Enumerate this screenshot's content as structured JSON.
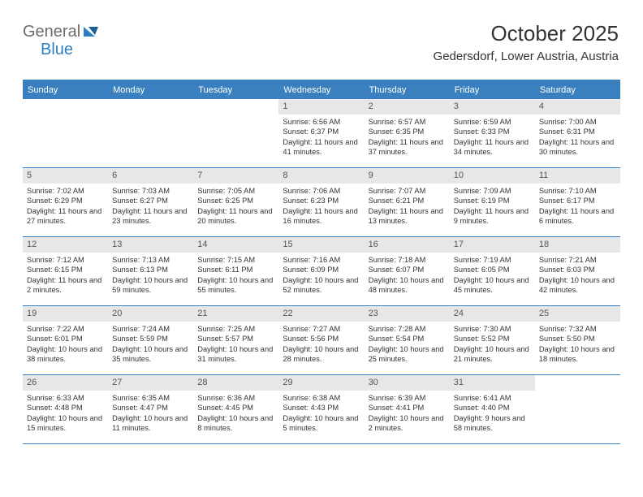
{
  "logo": {
    "general": "General",
    "blue": "Blue"
  },
  "header": {
    "month_title": "October 2025",
    "location": "Gedersdorf, Lower Austria, Austria"
  },
  "colors": {
    "brand_blue": "#3a80bf",
    "logo_blue": "#2d7fc1",
    "logo_gray": "#6b6b6b",
    "daynum_bg": "#e7e7e7",
    "text": "#333333",
    "page_bg": "#ffffff"
  },
  "weekdays": [
    "Sunday",
    "Monday",
    "Tuesday",
    "Wednesday",
    "Thursday",
    "Friday",
    "Saturday"
  ],
  "weeks": [
    [
      {
        "num": "",
        "sunrise": "",
        "sunset": "",
        "daylight": "",
        "empty": true
      },
      {
        "num": "",
        "sunrise": "",
        "sunset": "",
        "daylight": "",
        "empty": true
      },
      {
        "num": "",
        "sunrise": "",
        "sunset": "",
        "daylight": "",
        "empty": true
      },
      {
        "num": "1",
        "sunrise": "Sunrise: 6:56 AM",
        "sunset": "Sunset: 6:37 PM",
        "daylight": "Daylight: 11 hours and 41 minutes."
      },
      {
        "num": "2",
        "sunrise": "Sunrise: 6:57 AM",
        "sunset": "Sunset: 6:35 PM",
        "daylight": "Daylight: 11 hours and 37 minutes."
      },
      {
        "num": "3",
        "sunrise": "Sunrise: 6:59 AM",
        "sunset": "Sunset: 6:33 PM",
        "daylight": "Daylight: 11 hours and 34 minutes."
      },
      {
        "num": "4",
        "sunrise": "Sunrise: 7:00 AM",
        "sunset": "Sunset: 6:31 PM",
        "daylight": "Daylight: 11 hours and 30 minutes."
      }
    ],
    [
      {
        "num": "5",
        "sunrise": "Sunrise: 7:02 AM",
        "sunset": "Sunset: 6:29 PM",
        "daylight": "Daylight: 11 hours and 27 minutes."
      },
      {
        "num": "6",
        "sunrise": "Sunrise: 7:03 AM",
        "sunset": "Sunset: 6:27 PM",
        "daylight": "Daylight: 11 hours and 23 minutes."
      },
      {
        "num": "7",
        "sunrise": "Sunrise: 7:05 AM",
        "sunset": "Sunset: 6:25 PM",
        "daylight": "Daylight: 11 hours and 20 minutes."
      },
      {
        "num": "8",
        "sunrise": "Sunrise: 7:06 AM",
        "sunset": "Sunset: 6:23 PM",
        "daylight": "Daylight: 11 hours and 16 minutes."
      },
      {
        "num": "9",
        "sunrise": "Sunrise: 7:07 AM",
        "sunset": "Sunset: 6:21 PM",
        "daylight": "Daylight: 11 hours and 13 minutes."
      },
      {
        "num": "10",
        "sunrise": "Sunrise: 7:09 AM",
        "sunset": "Sunset: 6:19 PM",
        "daylight": "Daylight: 11 hours and 9 minutes."
      },
      {
        "num": "11",
        "sunrise": "Sunrise: 7:10 AM",
        "sunset": "Sunset: 6:17 PM",
        "daylight": "Daylight: 11 hours and 6 minutes."
      }
    ],
    [
      {
        "num": "12",
        "sunrise": "Sunrise: 7:12 AM",
        "sunset": "Sunset: 6:15 PM",
        "daylight": "Daylight: 11 hours and 2 minutes."
      },
      {
        "num": "13",
        "sunrise": "Sunrise: 7:13 AM",
        "sunset": "Sunset: 6:13 PM",
        "daylight": "Daylight: 10 hours and 59 minutes."
      },
      {
        "num": "14",
        "sunrise": "Sunrise: 7:15 AM",
        "sunset": "Sunset: 6:11 PM",
        "daylight": "Daylight: 10 hours and 55 minutes."
      },
      {
        "num": "15",
        "sunrise": "Sunrise: 7:16 AM",
        "sunset": "Sunset: 6:09 PM",
        "daylight": "Daylight: 10 hours and 52 minutes."
      },
      {
        "num": "16",
        "sunrise": "Sunrise: 7:18 AM",
        "sunset": "Sunset: 6:07 PM",
        "daylight": "Daylight: 10 hours and 48 minutes."
      },
      {
        "num": "17",
        "sunrise": "Sunrise: 7:19 AM",
        "sunset": "Sunset: 6:05 PM",
        "daylight": "Daylight: 10 hours and 45 minutes."
      },
      {
        "num": "18",
        "sunrise": "Sunrise: 7:21 AM",
        "sunset": "Sunset: 6:03 PM",
        "daylight": "Daylight: 10 hours and 42 minutes."
      }
    ],
    [
      {
        "num": "19",
        "sunrise": "Sunrise: 7:22 AM",
        "sunset": "Sunset: 6:01 PM",
        "daylight": "Daylight: 10 hours and 38 minutes."
      },
      {
        "num": "20",
        "sunrise": "Sunrise: 7:24 AM",
        "sunset": "Sunset: 5:59 PM",
        "daylight": "Daylight: 10 hours and 35 minutes."
      },
      {
        "num": "21",
        "sunrise": "Sunrise: 7:25 AM",
        "sunset": "Sunset: 5:57 PM",
        "daylight": "Daylight: 10 hours and 31 minutes."
      },
      {
        "num": "22",
        "sunrise": "Sunrise: 7:27 AM",
        "sunset": "Sunset: 5:56 PM",
        "daylight": "Daylight: 10 hours and 28 minutes."
      },
      {
        "num": "23",
        "sunrise": "Sunrise: 7:28 AM",
        "sunset": "Sunset: 5:54 PM",
        "daylight": "Daylight: 10 hours and 25 minutes."
      },
      {
        "num": "24",
        "sunrise": "Sunrise: 7:30 AM",
        "sunset": "Sunset: 5:52 PM",
        "daylight": "Daylight: 10 hours and 21 minutes."
      },
      {
        "num": "25",
        "sunrise": "Sunrise: 7:32 AM",
        "sunset": "Sunset: 5:50 PM",
        "daylight": "Daylight: 10 hours and 18 minutes."
      }
    ],
    [
      {
        "num": "26",
        "sunrise": "Sunrise: 6:33 AM",
        "sunset": "Sunset: 4:48 PM",
        "daylight": "Daylight: 10 hours and 15 minutes."
      },
      {
        "num": "27",
        "sunrise": "Sunrise: 6:35 AM",
        "sunset": "Sunset: 4:47 PM",
        "daylight": "Daylight: 10 hours and 11 minutes."
      },
      {
        "num": "28",
        "sunrise": "Sunrise: 6:36 AM",
        "sunset": "Sunset: 4:45 PM",
        "daylight": "Daylight: 10 hours and 8 minutes."
      },
      {
        "num": "29",
        "sunrise": "Sunrise: 6:38 AM",
        "sunset": "Sunset: 4:43 PM",
        "daylight": "Daylight: 10 hours and 5 minutes."
      },
      {
        "num": "30",
        "sunrise": "Sunrise: 6:39 AM",
        "sunset": "Sunset: 4:41 PM",
        "daylight": "Daylight: 10 hours and 2 minutes."
      },
      {
        "num": "31",
        "sunrise": "Sunrise: 6:41 AM",
        "sunset": "Sunset: 4:40 PM",
        "daylight": "Daylight: 9 hours and 58 minutes."
      },
      {
        "num": "",
        "sunrise": "",
        "sunset": "",
        "daylight": "",
        "empty": true
      }
    ]
  ]
}
